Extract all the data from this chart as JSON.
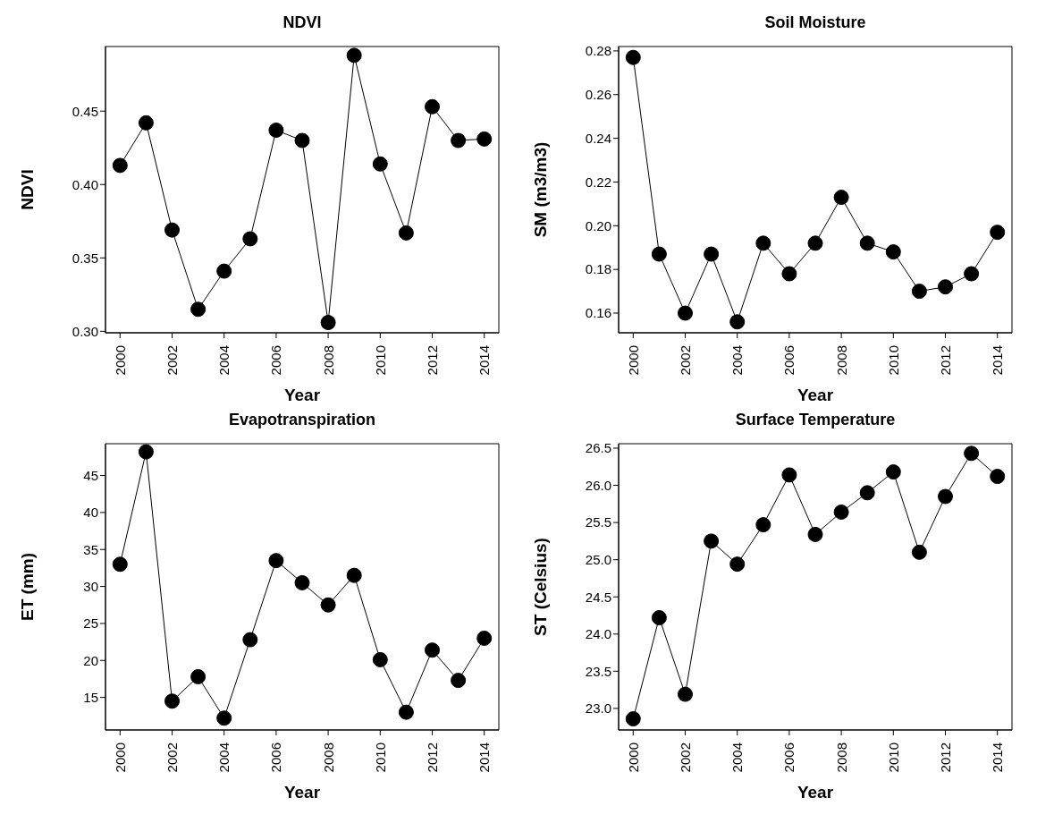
{
  "chart_data": [
    {
      "type": "line",
      "title": "NDVI",
      "xlabel": "Year",
      "ylabel": "NDVI",
      "marker": "circle",
      "color": "#000000",
      "x": [
        2000,
        2001,
        2002,
        2003,
        2004,
        2005,
        2006,
        2007,
        2008,
        2009,
        2010,
        2011,
        2012,
        2013,
        2014
      ],
      "values": [
        0.413,
        0.442,
        0.369,
        0.315,
        0.341,
        0.363,
        0.437,
        0.43,
        0.306,
        0.488,
        0.414,
        0.367,
        0.453,
        0.43,
        0.431
      ],
      "xlim": [
        1999.44,
        2014.56
      ],
      "xticks": [
        2000,
        2002,
        2004,
        2006,
        2008,
        2010,
        2012,
        2014
      ],
      "ylim": [
        0.299,
        0.494
      ],
      "yticks": [
        {
          "value": 0.3,
          "label": "0.30"
        },
        0.35,
        {
          "value": 0.4,
          "label": "0.40"
        },
        0.45
      ]
    },
    {
      "type": "line",
      "title": "Soil Moisture",
      "xlabel": "Year",
      "ylabel": "SM (m3/m3)",
      "marker": "circle",
      "color": "#000000",
      "x": [
        2000,
        2001,
        2002,
        2003,
        2004,
        2005,
        2006,
        2007,
        2008,
        2009,
        2010,
        2011,
        2012,
        2013,
        2014
      ],
      "values": [
        0.277,
        0.187,
        0.16,
        0.187,
        0.156,
        0.192,
        0.178,
        0.192,
        0.213,
        0.192,
        0.188,
        0.17,
        0.172,
        0.178,
        0.197
      ],
      "xlim": [
        1999.44,
        2014.56
      ],
      "xticks": [
        2000,
        2002,
        2004,
        2006,
        2008,
        2010,
        2012,
        2014
      ],
      "ylim": [
        0.151,
        0.282
      ],
      "yticks": [
        0.16,
        0.18,
        {
          "value": 0.2,
          "label": "0.20"
        },
        0.22,
        0.24,
        0.26,
        0.28
      ]
    },
    {
      "type": "line",
      "title": "Evapotranspiration",
      "xlabel": "Year",
      "ylabel": "ET (mm)",
      "marker": "circle",
      "color": "#000000",
      "x": [
        2000,
        2001,
        2002,
        2003,
        2004,
        2005,
        2006,
        2007,
        2008,
        2009,
        2010,
        2011,
        2012,
        2013,
        2014
      ],
      "values": [
        33.0,
        48.2,
        14.5,
        17.8,
        12.2,
        22.8,
        33.5,
        30.5,
        27.5,
        31.5,
        20.1,
        13.0,
        21.4,
        17.3,
        23.0
      ],
      "xlim": [
        1999.44,
        2014.56
      ],
      "xticks": [
        2000,
        2002,
        2004,
        2006,
        2008,
        2010,
        2012,
        2014
      ],
      "ylim": [
        10.6,
        49.3
      ],
      "yticks": [
        15,
        20,
        25,
        30,
        35,
        40,
        45
      ]
    },
    {
      "type": "line",
      "title": "Surface Temperature",
      "xlabel": "Year",
      "ylabel": "ST (Celsius)",
      "marker": "circle",
      "color": "#000000",
      "x": [
        2000,
        2001,
        2002,
        2003,
        2004,
        2005,
        2006,
        2007,
        2008,
        2009,
        2010,
        2011,
        2012,
        2013,
        2014
      ],
      "values": [
        22.86,
        24.22,
        23.19,
        25.25,
        24.94,
        25.47,
        26.14,
        25.34,
        25.64,
        25.9,
        26.18,
        25.1,
        25.85,
        26.43,
        26.12
      ],
      "xlim": [
        1999.44,
        2014.56
      ],
      "xticks": [
        2000,
        2002,
        2004,
        2006,
        2008,
        2010,
        2012,
        2014
      ],
      "ylim": [
        22.71,
        26.56
      ],
      "yticks": [
        {
          "value": 23,
          "label": "23.0"
        },
        23.5,
        {
          "value": 24,
          "label": "24.0"
        },
        24.5,
        {
          "value": 25,
          "label": "25.0"
        },
        25.5,
        {
          "value": 26,
          "label": "26.0"
        },
        26.5
      ]
    }
  ]
}
